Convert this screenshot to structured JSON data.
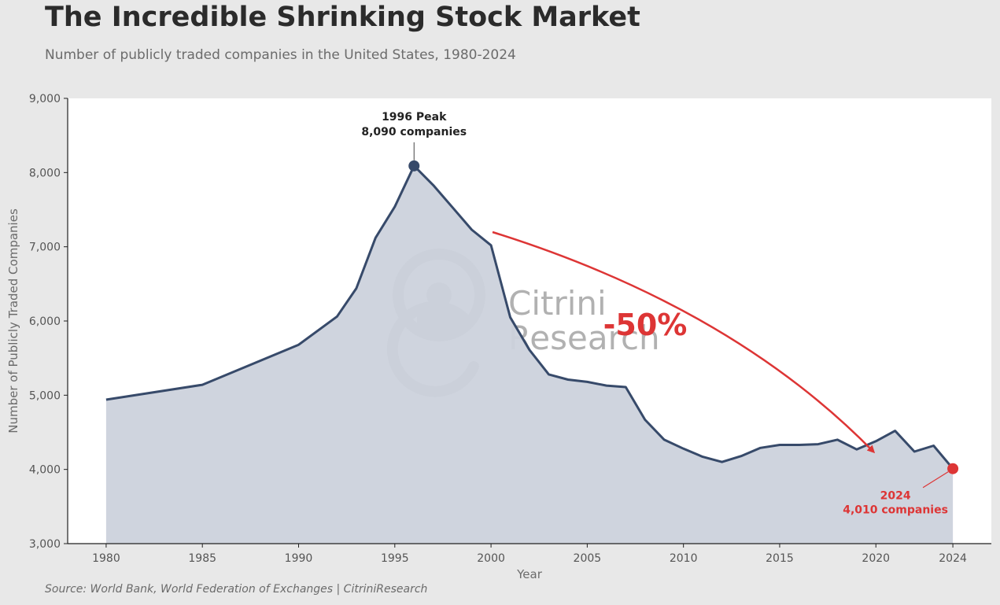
{
  "chart_data": {
    "type": "area",
    "title": "The Incredible Shrinking Stock Market",
    "subtitle": "Number of publicly traded companies in the United States, 1980-2024",
    "xlabel": "Year",
    "ylabel": "Number of Publicly Traded Companies",
    "xlim": [
      1978,
      2026
    ],
    "ylim": [
      3000,
      9000
    ],
    "x_ticks": [
      1980,
      1985,
      1990,
      1995,
      2000,
      2005,
      2010,
      2015,
      2020,
      2024
    ],
    "y_ticks": [
      3000,
      4000,
      5000,
      6000,
      7000,
      8000,
      9000
    ],
    "y_tick_labels": [
      "3,000",
      "4,000",
      "5,000",
      "6,000",
      "7,000",
      "8,000",
      "9,000"
    ],
    "grid": false,
    "series": [
      {
        "x": [
          1980,
          1985,
          1990,
          1992,
          1993,
          1994,
          1995,
          1996,
          1997,
          1998,
          1999,
          2000,
          2001,
          2002,
          2003,
          2004,
          2005,
          2006,
          2007,
          2008,
          2009,
          2010,
          2011,
          2012,
          2013,
          2014,
          2015,
          2016,
          2017,
          2018,
          2019,
          2020,
          2021,
          2022,
          2023,
          2024
        ],
        "y": [
          4940,
          5140,
          5680,
          6060,
          6440,
          7120,
          7540,
          8090,
          7830,
          7530,
          7230,
          7020,
          6050,
          5610,
          5280,
          5210,
          5180,
          5130,
          5110,
          4670,
          4400,
          4280,
          4170,
          4100,
          4180,
          4290,
          4330,
          4330,
          4340,
          4400,
          4270,
          4380,
          4520,
          4240,
          4320,
          4010
        ]
      }
    ],
    "annotations": {
      "peak": {
        "x": 1996,
        "y": 8090,
        "line1": "1996 Peak",
        "line2": "8,090 companies"
      },
      "end": {
        "x": 2024,
        "y": 4010,
        "line1": "2024",
        "line2": "4,010 companies"
      },
      "change_label": "-50%"
    },
    "watermark": {
      "line1": "Citrini",
      "line2": "Research"
    },
    "colors": {
      "line": "#374a6a",
      "fill": "#ccd2dc",
      "accent": "#dd3535",
      "plot_bg": "#ffffff",
      "page_bg": "#e8e8e8",
      "watermark": "#a9a9a9"
    },
    "source": "Source: World Bank, World Federation of Exchanges | CitriniResearch"
  }
}
